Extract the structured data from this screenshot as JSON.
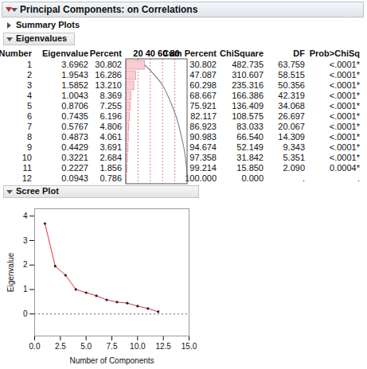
{
  "header": {
    "title": "Principal Components: on Correlations"
  },
  "sections": {
    "summary_plots": "Summary Plots",
    "eigenvalues": "Eigenvalues",
    "scree_plot": "Scree Plot"
  },
  "table": {
    "columns": [
      "Number",
      "Eigenvalue",
      "Percent",
      "Cum Percent",
      "ChiSquare",
      "DF",
      "Prob>ChiSq"
    ],
    "bar_range": [
      0,
      100
    ],
    "bar_ticks": [
      20,
      40,
      60,
      80
    ],
    "rows": [
      [
        "1",
        "3.6962",
        "30.802",
        "30.802",
        "482.735",
        "63.759",
        "<.0001*"
      ],
      [
        "2",
        "1.9543",
        "16.286",
        "47.087",
        "310.607",
        "58.515",
        "<.0001*"
      ],
      [
        "3",
        "1.5852",
        "13.210",
        "60.298",
        "235.316",
        "50.356",
        "<.0001*"
      ],
      [
        "4",
        "1.0043",
        "8.369",
        "68.667",
        "166.386",
        "42.319",
        "<.0001*"
      ],
      [
        "5",
        "0.8706",
        "7.255",
        "75.921",
        "136.409",
        "34.068",
        "<.0001*"
      ],
      [
        "6",
        "0.7435",
        "6.196",
        "82.117",
        "108.575",
        "26.697",
        "<.0001*"
      ],
      [
        "7",
        "0.5767",
        "4.806",
        "86.923",
        "83.033",
        "20.067",
        "<.0001*"
      ],
      [
        "8",
        "0.4873",
        "4.061",
        "90.983",
        "66.540",
        "14.309",
        "<.0001*"
      ],
      [
        "9",
        "0.4429",
        "3.691",
        "94.674",
        "52.149",
        "9.343",
        "<.0001*"
      ],
      [
        "10",
        "0.3221",
        "2.684",
        "97.358",
        "31.842",
        "5.351",
        "<.0001*"
      ],
      [
        "11",
        "0.2227",
        "1.856",
        "99.214",
        "15.850",
        "2.090",
        "0.0004*"
      ],
      [
        "12",
        "0.0943",
        "0.786",
        "100.000",
        "0.000",
        ".",
        "."
      ]
    ]
  },
  "chart_data": {
    "type": "line",
    "x_label": "Number of Components",
    "y_label": "Eigenvalue",
    "x": [
      1,
      2,
      3,
      4,
      5,
      6,
      7,
      8,
      9,
      10,
      11,
      12
    ],
    "values": [
      3.6962,
      1.9543,
      1.5852,
      1.0043,
      0.8706,
      0.7435,
      0.5767,
      0.4873,
      0.4429,
      0.3221,
      0.2227,
      0.0943
    ],
    "color": "#e0303f",
    "marker": "dot",
    "grid": false,
    "reference_line": 0,
    "xlim": [
      0,
      15
    ],
    "xticks": [
      {
        "value": 0,
        "label": "0.0"
      },
      {
        "value": 2.5,
        "label": "2.5"
      },
      {
        "value": 5,
        "label": "5.0"
      },
      {
        "value": 7.5,
        "label": "7.5"
      },
      {
        "value": 10,
        "label": "10.0"
      },
      {
        "value": 12.5,
        "label": "12.5"
      },
      {
        "value": 15,
        "label": "15.0"
      }
    ],
    "ylim": [
      -0.9,
      4.3
    ],
    "yticks": [
      0,
      1,
      2,
      3,
      4
    ]
  }
}
